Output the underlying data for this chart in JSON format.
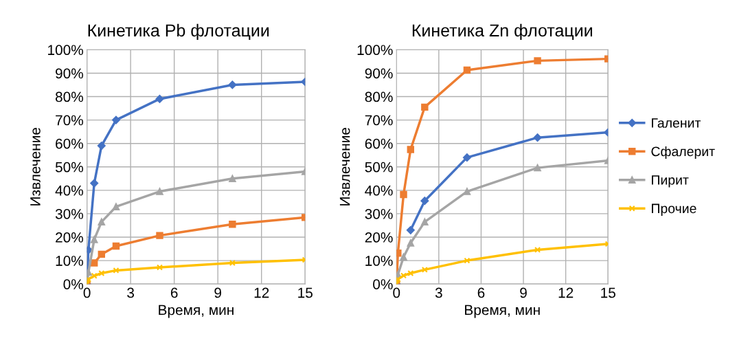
{
  "chart_data": [
    {
      "type": "line",
      "title": "Кинетика Pb флотации",
      "xlabel": "Время, мин",
      "ylabel": "Извлечение",
      "x": [
        0,
        0.1,
        0.5,
        1,
        2,
        5,
        10,
        15
      ],
      "xlim": [
        0,
        15
      ],
      "xticks": [
        0,
        3,
        6,
        9,
        12,
        15
      ],
      "ylim": [
        0,
        100
      ],
      "yticks": [
        {
          "value": 0,
          "label": "0%"
        },
        {
          "value": 10,
          "label": "10%"
        },
        {
          "value": 20,
          "label": "20%"
        },
        {
          "value": 30,
          "label": "30%"
        },
        {
          "value": 40,
          "label": "40%"
        },
        {
          "value": 50,
          "label": "50%"
        },
        {
          "value": 60,
          "label": "60%"
        },
        {
          "value": 70,
          "label": "70%"
        },
        {
          "value": 80,
          "label": "80%"
        },
        {
          "value": 90,
          "label": "90%"
        },
        {
          "value": 100,
          "label": "100%"
        }
      ],
      "grid": true,
      "legend": false,
      "line_style": "solid",
      "series": [
        {
          "color": "#4472c4",
          "marker": "diamond",
          "values": [
            0,
            14.5,
            43,
            59,
            70,
            79,
            85,
            86.3
          ]
        },
        {
          "color": "#ed7d31",
          "marker": "square",
          "values": [
            0,
            null,
            9,
            12.7,
            16.2,
            20.7,
            25.5,
            28.4
          ]
        },
        {
          "color": "#a5a5a5",
          "marker": "triangle",
          "values": [
            0,
            5,
            19,
            26.5,
            33,
            39.5,
            45,
            48
          ]
        },
        {
          "color": "#ffc000",
          "marker": "cross",
          "values": [
            0,
            2,
            3.5,
            4.6,
            5.8,
            7.1,
            9,
            10.3
          ]
        }
      ]
    },
    {
      "type": "line",
      "title": "Кинетика Zn флотации",
      "xlabel": "Время, мин",
      "ylabel": "Извлечение",
      "x": [
        0,
        0.1,
        0.5,
        1,
        2,
        5,
        10,
        15
      ],
      "xlim": [
        0,
        15
      ],
      "xticks": [
        0,
        3,
        6,
        9,
        12,
        15
      ],
      "ylim": [
        0,
        100
      ],
      "yticks": [
        {
          "value": 0,
          "label": "0%"
        },
        {
          "value": 10,
          "label": "10%"
        },
        {
          "value": 20,
          "label": "20%"
        },
        {
          "value": 30,
          "label": "30%"
        },
        {
          "value": 40,
          "label": "40%"
        },
        {
          "value": 50,
          "label": "50%"
        },
        {
          "value": 60,
          "label": "60%"
        },
        {
          "value": 70,
          "label": "70%"
        },
        {
          "value": 80,
          "label": "80%"
        },
        {
          "value": 90,
          "label": "90%"
        },
        {
          "value": 100,
          "label": "100%"
        }
      ],
      "grid": true,
      "legend": "right",
      "line_style": "solid",
      "series": [
        {
          "name": "Галенит",
          "color": "#4472c4",
          "marker": "diamond",
          "values": [
            0,
            null,
            null,
            23,
            35.5,
            54,
            62.5,
            64.7
          ]
        },
        {
          "name": "Сфалерит",
          "color": "#ed7d31",
          "marker": "square",
          "values": [
            0,
            13.2,
            38.2,
            57.4,
            75.5,
            91.3,
            95.3,
            96.1
          ]
        },
        {
          "name": "Пирит",
          "color": "#a5a5a5",
          "marker": "triangle",
          "values": [
            0,
            4,
            11.5,
            17.5,
            26.5,
            39.5,
            49.6,
            52.7
          ]
        },
        {
          "name": "Прочие",
          "color": "#ffc000",
          "marker": "cross",
          "values": [
            0,
            2,
            3.6,
            4.6,
            6.1,
            10,
            14.6,
            17.1
          ]
        }
      ]
    }
  ]
}
